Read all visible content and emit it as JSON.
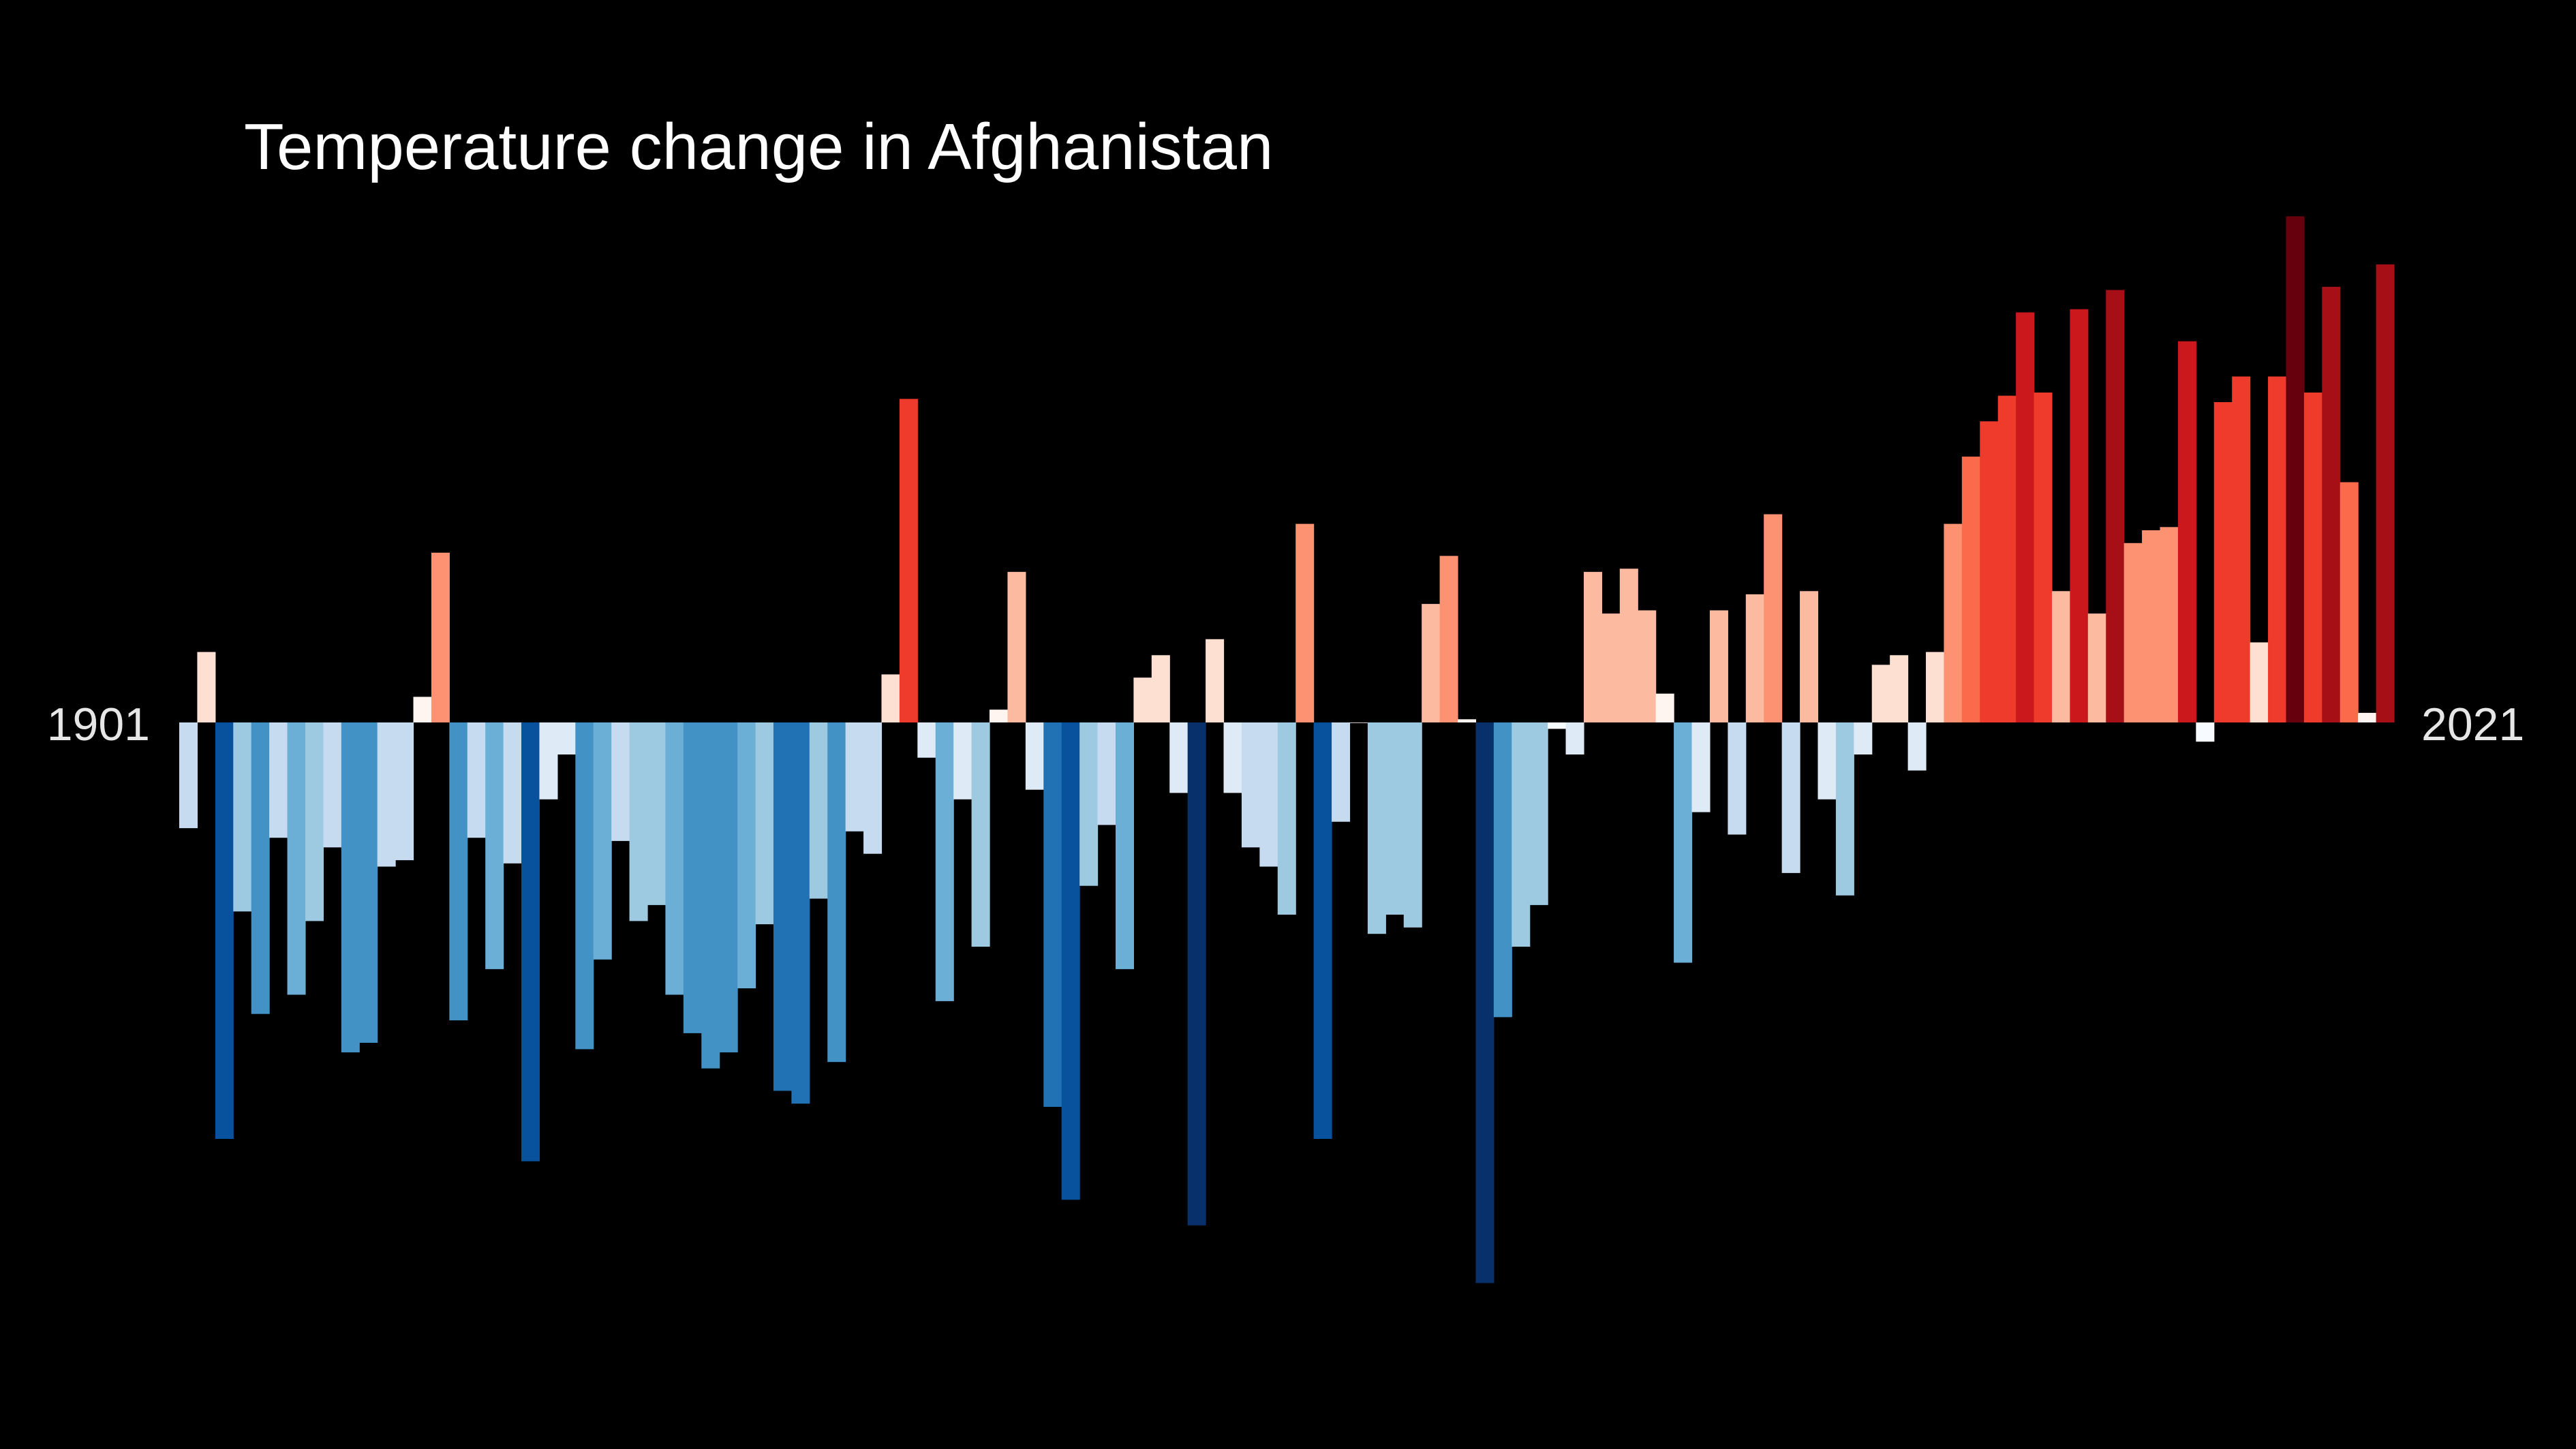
{
  "chart_data": {
    "type": "bar",
    "title": "Temperature change in Afghanistan",
    "start_label": "1901",
    "end_label": "2021",
    "x_start": 1901,
    "x_end": 2021,
    "ylim": [
      -1.75,
      1.58
    ],
    "grid": false,
    "legend": "none",
    "values": [
      -0.33,
      0.22,
      -1.3,
      -0.59,
      -0.91,
      -0.36,
      -0.85,
      -0.62,
      -0.39,
      -1.03,
      -1.0,
      -0.45,
      -0.43,
      0.08,
      0.53,
      -0.93,
      -0.36,
      -0.77,
      -0.44,
      -1.37,
      -0.24,
      -0.1,
      -1.02,
      -0.74,
      -0.37,
      -0.62,
      -0.57,
      -0.85,
      -0.97,
      -1.08,
      -1.03,
      -0.83,
      -0.63,
      -1.15,
      -1.19,
      -0.55,
      -1.06,
      -0.34,
      -0.41,
      0.15,
      1.01,
      -0.11,
      -0.87,
      -0.24,
      -0.7,
      0.04,
      0.47,
      -0.21,
      -1.2,
      -1.49,
      -0.51,
      -0.32,
      -0.77,
      0.14,
      0.21,
      -0.22,
      -1.57,
      0.26,
      -0.22,
      -0.39,
      -0.45,
      -0.6,
      0.62,
      -1.3,
      -0.31,
      0.0,
      -0.66,
      -0.6,
      -0.64,
      0.37,
      0.52,
      0.01,
      -1.75,
      -0.92,
      -0.7,
      -0.57,
      -0.02,
      -0.1,
      0.47,
      0.34,
      0.48,
      0.35,
      0.09,
      -0.75,
      -0.28,
      0.35,
      -0.35,
      0.4,
      0.65,
      -0.47,
      0.41,
      -0.24,
      -0.54,
      -0.1,
      0.18,
      0.21,
      -0.15,
      0.22,
      0.62,
      0.83,
      0.94,
      1.02,
      1.28,
      1.03,
      0.41,
      1.29,
      0.34,
      1.35,
      0.56,
      0.6,
      0.61,
      1.19,
      -0.06,
      1.0,
      1.08,
      0.25,
      1.08,
      1.58,
      1.03,
      1.36,
      0.75,
      0.03,
      1.43
    ]
  }
}
